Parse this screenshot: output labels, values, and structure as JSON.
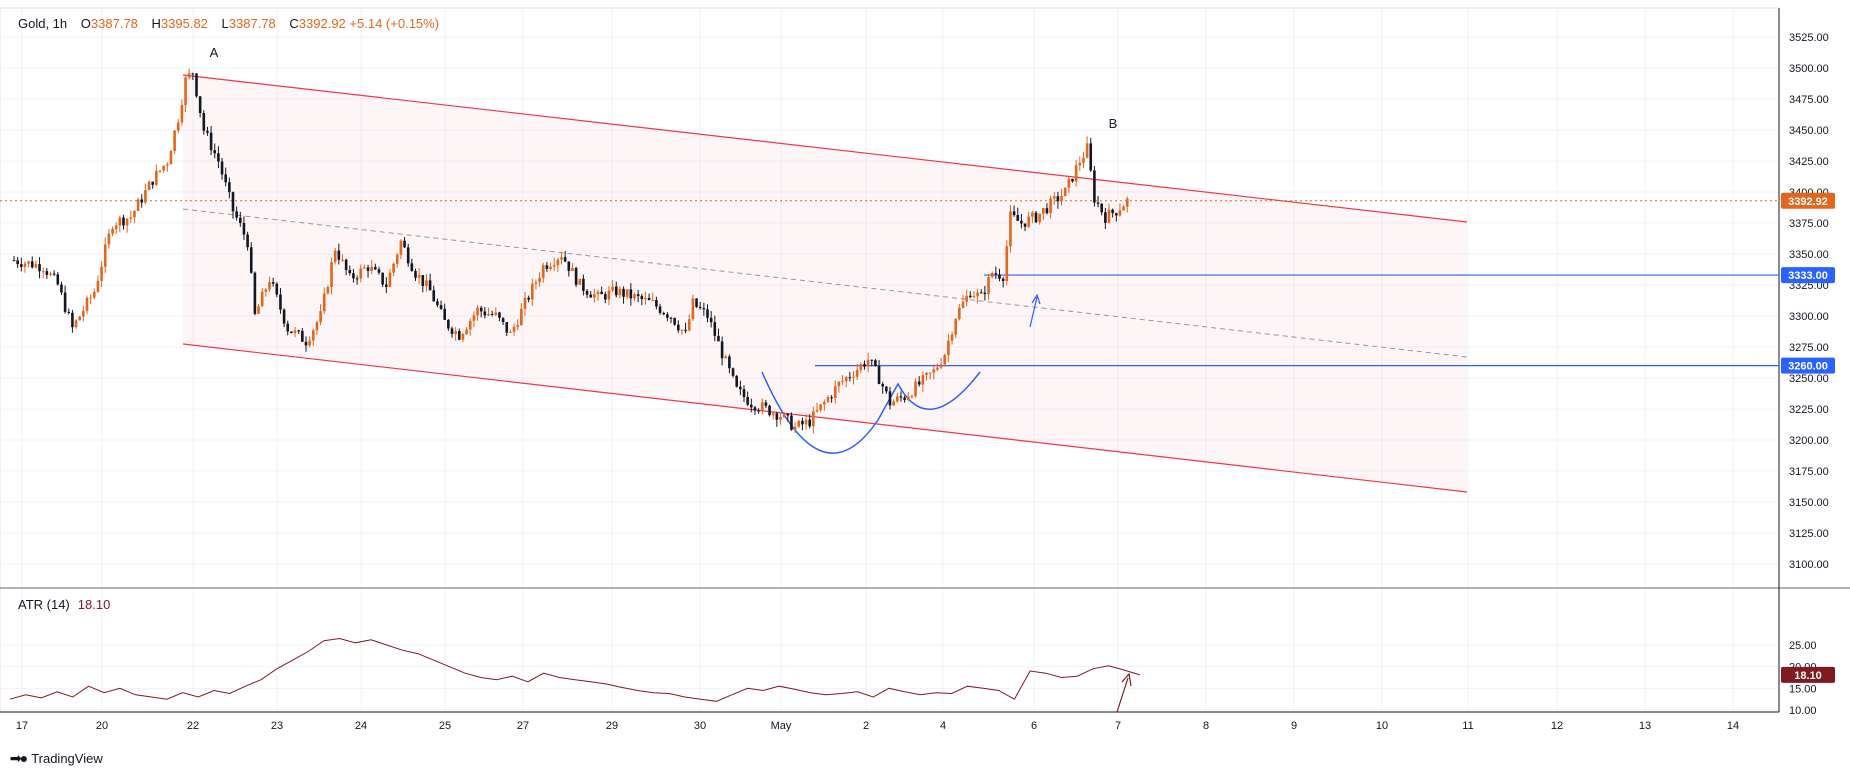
{
  "legend": {
    "symbol": "Gold, 1h",
    "o_label": "O",
    "o": "3387.78",
    "h_label": "H",
    "h": "3395.82",
    "l_label": "L",
    "l": "3387.78",
    "c_label": "C",
    "c": "3392.92",
    "change": "+5.14 (+0.15%)"
  },
  "atr_legend": {
    "name": "ATR (14)",
    "value": "18.10"
  },
  "brand": {
    "name": "TradingView"
  },
  "colors": {
    "up": "#e2661c",
    "down": "#131722",
    "channel": "#f23645",
    "level": "#2962ff",
    "atr": "#801922",
    "price_badge": "#e2661c"
  },
  "chart_data": {
    "type": "candlestick",
    "symbol": "Gold",
    "interval": "1h",
    "ylim": [
      3075,
      3540
    ],
    "y_ticks": [
      "3100.00",
      "3125.00",
      "3150.00",
      "3175.00",
      "3200.00",
      "3225.00",
      "3250.00",
      "3275.00",
      "3300.00",
      "3325.00",
      "3350.00",
      "3375.00",
      "3400.00",
      "3425.00",
      "3450.00",
      "3475.00",
      "3500.00",
      "3525.00"
    ],
    "x_ticks": [
      "17",
      "20",
      "22",
      "23",
      "24",
      "25",
      "27",
      "29",
      "30",
      "May",
      "2",
      "4",
      "6",
      "7",
      "8",
      "9",
      "10",
      "11",
      "12",
      "13",
      "14"
    ],
    "current_price": "3392.92",
    "levels": [
      {
        "label": "3333.00",
        "value": 3333
      },
      {
        "label": "3260.00",
        "value": 3260
      }
    ],
    "annotations": [
      {
        "text": "A"
      },
      {
        "text": "B"
      }
    ],
    "price_path": [
      [
        0,
        3345
      ],
      [
        8,
        3340
      ],
      [
        12,
        3325
      ],
      [
        16,
        3290
      ],
      [
        22,
        3320
      ],
      [
        27,
        3375
      ],
      [
        32,
        3380
      ],
      [
        38,
        3410
      ],
      [
        42,
        3425
      ],
      [
        45,
        3460
      ],
      [
        47,
        3490
      ],
      [
        49,
        3497
      ],
      [
        52,
        3450
      ],
      [
        56,
        3425
      ],
      [
        60,
        3385
      ],
      [
        64,
        3360
      ],
      [
        66,
        3300
      ],
      [
        70,
        3330
      ],
      [
        75,
        3290
      ],
      [
        80,
        3280
      ],
      [
        84,
        3300
      ],
      [
        88,
        3355
      ],
      [
        92,
        3330
      ],
      [
        97,
        3340
      ],
      [
        102,
        3325
      ],
      [
        106,
        3360
      ],
      [
        110,
        3335
      ],
      [
        114,
        3320
      ],
      [
        118,
        3295
      ],
      [
        122,
        3285
      ],
      [
        127,
        3305
      ],
      [
        132,
        3300
      ],
      [
        136,
        3285
      ],
      [
        140,
        3310
      ],
      [
        145,
        3340
      ],
      [
        150,
        3350
      ],
      [
        155,
        3325
      ],
      [
        160,
        3315
      ],
      [
        165,
        3320
      ],
      [
        170,
        3315
      ],
      [
        175,
        3310
      ],
      [
        180,
        3300
      ],
      [
        184,
        3285
      ],
      [
        186,
        3310
      ],
      [
        190,
        3300
      ],
      [
        194,
        3270
      ],
      [
        198,
        3240
      ],
      [
        202,
        3230
      ],
      [
        206,
        3225
      ],
      [
        210,
        3220
      ],
      [
        214,
        3210
      ],
      [
        218,
        3215
      ],
      [
        222,
        3230
      ],
      [
        226,
        3245
      ],
      [
        230,
        3255
      ],
      [
        234,
        3265
      ],
      [
        237,
        3250
      ],
      [
        240,
        3230
      ],
      [
        244,
        3235
      ],
      [
        248,
        3245
      ],
      [
        252,
        3255
      ],
      [
        255,
        3270
      ],
      [
        258,
        3300
      ],
      [
        262,
        3320
      ],
      [
        265,
        3315
      ],
      [
        268,
        3335
      ],
      [
        271,
        3333
      ],
      [
        273,
        3380
      ],
      [
        276,
        3375
      ],
      [
        280,
        3380
      ],
      [
        284,
        3390
      ],
      [
        288,
        3400
      ],
      [
        292,
        3425
      ],
      [
        294,
        3435
      ],
      [
        296,
        3395
      ],
      [
        299,
        3380
      ],
      [
        302,
        3385
      ],
      [
        305,
        3392.92
      ]
    ],
    "atr": {
      "name": "ATR (14)",
      "value": "18.10",
      "ylim": [
        9,
        28
      ],
      "y_ticks": [
        "10.00",
        "15.00",
        "20.00",
        "25.00"
      ],
      "values": [
        12.5,
        13.5,
        12.8,
        14.2,
        13.0,
        15.5,
        14.0,
        15.0,
        13.5,
        13.0,
        12.5,
        14.0,
        13.0,
        14.5,
        13.8,
        15.5,
        17.0,
        19.5,
        21.5,
        23.5,
        26.0,
        26.5,
        25.5,
        26.2,
        25.0,
        23.8,
        23.0,
        21.5,
        20.0,
        18.5,
        17.5,
        17.0,
        17.8,
        16.5,
        18.5,
        17.5,
        17.0,
        16.5,
        16.0,
        15.2,
        14.5,
        14.0,
        13.8,
        13.0,
        12.5,
        12.0,
        13.5,
        15.0,
        14.5,
        15.5,
        14.8,
        14.0,
        13.5,
        13.8,
        14.2,
        13.0,
        15.0,
        14.2,
        13.5,
        14.0,
        13.8,
        15.5,
        15.0,
        14.5,
        12.5,
        19.0,
        18.5,
        17.5,
        17.8,
        19.5,
        20.2,
        19.2,
        18.1
      ]
    }
  }
}
